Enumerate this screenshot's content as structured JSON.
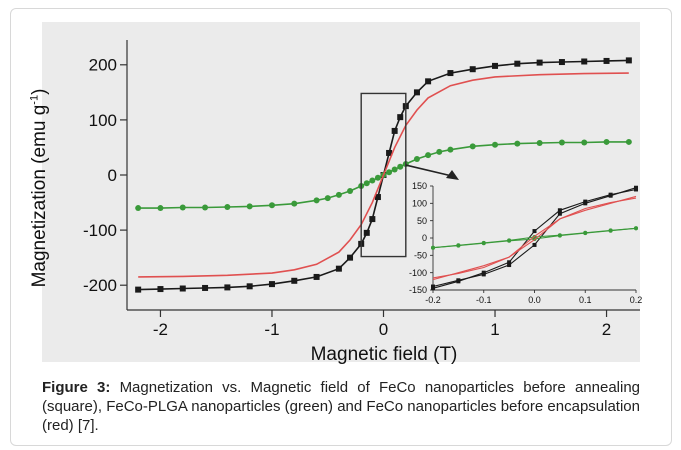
{
  "caption": {
    "label": "Figure 3:",
    "text": " Magnetization vs. Magnetic field of FeCo nanoparticles before annealing (square), FeCo-PLGA nanoparticles (green) and FeCo nanoparticles before encapsulation (red) [7]."
  },
  "chart_data": [
    {
      "type": "line",
      "title": "",
      "xlabel": "Magnetic field (T)",
      "ylabel_main": "Magnetization (emu g",
      "ylabel_sup": "-1",
      "ylabel_tail": ")",
      "xlim": [
        -2.3,
        2.3
      ],
      "ylim": [
        -245,
        245
      ],
      "xticks": [
        -2,
        -1,
        0,
        1,
        2
      ],
      "yticks": [
        200,
        100,
        0,
        -100,
        -200
      ],
      "grid": false,
      "series": [
        {
          "color": "#1a1a1a",
          "marker": "square",
          "x": [
            -2.2,
            -2.0,
            -1.8,
            -1.6,
            -1.4,
            -1.2,
            -1.0,
            -0.8,
            -0.6,
            -0.4,
            -0.3,
            -0.2,
            -0.15,
            -0.1,
            -0.05,
            0.0,
            0.05,
            0.1,
            0.15,
            0.2,
            0.3,
            0.4,
            0.6,
            0.8,
            1.0,
            1.2,
            1.4,
            1.6,
            1.8,
            2.0,
            2.2
          ],
          "y": [
            -208,
            -207,
            -206,
            -205,
            -204,
            -202,
            -198,
            -192,
            -185,
            -170,
            -150,
            -125,
            -105,
            -80,
            -40,
            0,
            40,
            80,
            105,
            125,
            150,
            170,
            185,
            192,
            198,
            202,
            204,
            205,
            206,
            207,
            208
          ]
        },
        {
          "color": "#3a9a3a",
          "marker": "circle",
          "x": [
            -2.2,
            -2.0,
            -1.8,
            -1.6,
            -1.4,
            -1.2,
            -1.0,
            -0.8,
            -0.6,
            -0.5,
            -0.4,
            -0.3,
            -0.2,
            -0.15,
            -0.1,
            -0.05,
            0.0,
            0.05,
            0.1,
            0.15,
            0.2,
            0.3,
            0.4,
            0.5,
            0.6,
            0.8,
            1.0,
            1.2,
            1.4,
            1.6,
            1.8,
            2.0,
            2.2
          ],
          "y": [
            -60,
            -60,
            -59,
            -59,
            -58,
            -57,
            -55,
            -52,
            -46,
            -42,
            -36,
            -29,
            -20,
            -15,
            -10,
            -5,
            0,
            5,
            10,
            15,
            20,
            29,
            36,
            42,
            46,
            52,
            55,
            57,
            58,
            59,
            59,
            60,
            60
          ]
        },
        {
          "color": "#e05050",
          "marker": "none",
          "x": [
            -2.2,
            -1.8,
            -1.4,
            -1.0,
            -0.8,
            -0.6,
            -0.4,
            -0.3,
            -0.2,
            -0.1,
            0.0,
            0.1,
            0.2,
            0.3,
            0.4,
            0.6,
            0.8,
            1.0,
            1.4,
            1.8,
            2.2
          ],
          "y": [
            -185,
            -184,
            -182,
            -178,
            -172,
            -162,
            -140,
            -118,
            -90,
            -50,
            0,
            50,
            90,
            118,
            140,
            162,
            172,
            178,
            182,
            184,
            185
          ]
        }
      ]
    },
    {
      "type": "line",
      "title": "",
      "xlabel": "",
      "ylabel": "",
      "xlim": [
        -0.2,
        0.2
      ],
      "ylim": [
        -150,
        150
      ],
      "xticks": [
        -0.2,
        -0.1,
        0.0,
        0.1,
        0.2
      ],
      "xtick_labels": [
        "-0.2",
        "-0.1",
        "0.0",
        "0.1",
        "0.2"
      ],
      "yticks": [
        150,
        100,
        50,
        0,
        -50,
        -100,
        -150
      ],
      "grid": false,
      "series": [
        {
          "color": "#1a1a1a",
          "marker": "square",
          "x": [
            -0.2,
            -0.15,
            -0.1,
            -0.05,
            0.0,
            0.05,
            0.1,
            0.15,
            0.2
          ],
          "y": [
            -145,
            -125,
            -100,
            -70,
            20,
            80,
            105,
            125,
            140
          ]
        },
        {
          "color": "#1a1a1a",
          "marker": "square",
          "x": [
            -0.2,
            -0.15,
            -0.1,
            -0.05,
            0.0,
            0.05,
            0.1,
            0.15,
            0.2
          ],
          "y": [
            -140,
            -122,
            -105,
            -78,
            -20,
            70,
            100,
            122,
            145
          ]
        },
        {
          "color": "#3a9a3a",
          "marker": "circle",
          "x": [
            -0.2,
            -0.15,
            -0.1,
            -0.05,
            0.0,
            0.05,
            0.1,
            0.15,
            0.2
          ],
          "y": [
            -28,
            -21,
            -14,
            -7,
            3,
            8,
            15,
            22,
            28
          ]
        },
        {
          "color": "#3a9a3a",
          "marker": "circle",
          "x": [
            -0.2,
            -0.15,
            -0.1,
            -0.05,
            0.0,
            0.05,
            0.1,
            0.15,
            0.2
          ],
          "y": [
            -28,
            -22,
            -15,
            -8,
            -3,
            7,
            14,
            21,
            28
          ]
        },
        {
          "color": "#e05050",
          "marker": "none",
          "x": [
            -0.2,
            -0.15,
            -0.1,
            -0.05,
            0.0,
            0.05,
            0.1,
            0.15,
            0.2
          ],
          "y": [
            -120,
            -100,
            -80,
            -55,
            5,
            55,
            85,
            102,
            115
          ]
        },
        {
          "color": "#e05050",
          "marker": "none",
          "x": [
            -0.2,
            -0.15,
            -0.1,
            -0.05,
            0.0,
            0.05,
            0.1,
            0.15,
            0.2
          ],
          "y": [
            -115,
            -102,
            -85,
            -55,
            -5,
            55,
            80,
            100,
            120
          ]
        }
      ]
    }
  ],
  "zoom_box": {
    "x": [
      -0.2,
      0.2
    ],
    "y": [
      -148,
      148
    ]
  }
}
